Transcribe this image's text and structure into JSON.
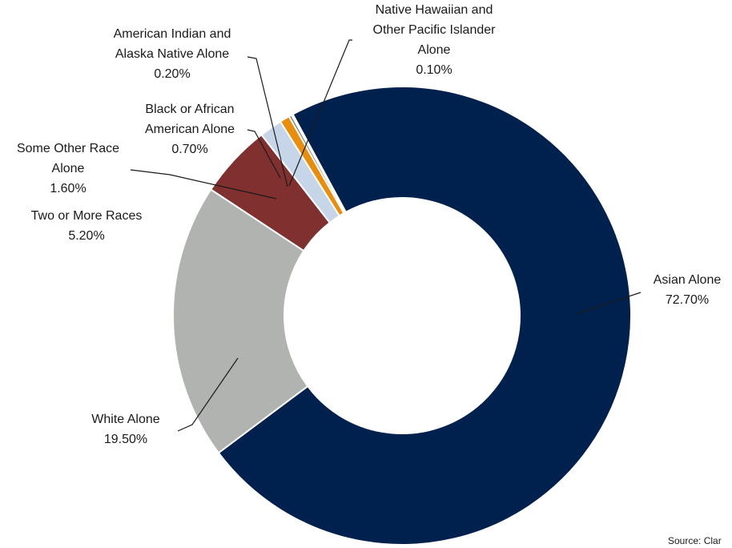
{
  "chart_data": {
    "type": "pie",
    "title": "",
    "donut": true,
    "start_angle_deg": 0,
    "slices": [
      {
        "key": "asian",
        "label_lines": [
          "Asian Alone"
        ],
        "value": 72.7,
        "value_label": "72.70%",
        "color": "#00214d"
      },
      {
        "key": "white",
        "label_lines": [
          "White Alone"
        ],
        "value": 19.5,
        "value_label": "19.50%",
        "color": "#b0b3b0"
      },
      {
        "key": "two-or-more",
        "label_lines": [
          "Two or More Races"
        ],
        "value": 5.2,
        "value_label": "5.20%",
        "color": "#80302e"
      },
      {
        "key": "some-other",
        "label_lines": [
          "Some Other Race",
          "Alone"
        ],
        "value": 1.6,
        "value_label": "1.60%",
        "color": "#c6d5e8"
      },
      {
        "key": "black",
        "label_lines": [
          "Black or African",
          "American Alone"
        ],
        "value": 0.7,
        "value_label": "0.70%",
        "color": "#e98e0c"
      },
      {
        "key": "american-indian",
        "label_lines": [
          "American Indian and",
          "Alaska Native Alone"
        ],
        "value": 0.2,
        "value_label": "0.20%",
        "color": "#7f7f7f"
      },
      {
        "key": "native-hawaiian",
        "label_lines": [
          "Native Hawaiian and",
          "Other Pacific Islander",
          "Alone"
        ],
        "value": 0.1,
        "value_label": "0.10%",
        "color": "#2e2e2e"
      }
    ]
  },
  "source_text": "Source: Clar"
}
